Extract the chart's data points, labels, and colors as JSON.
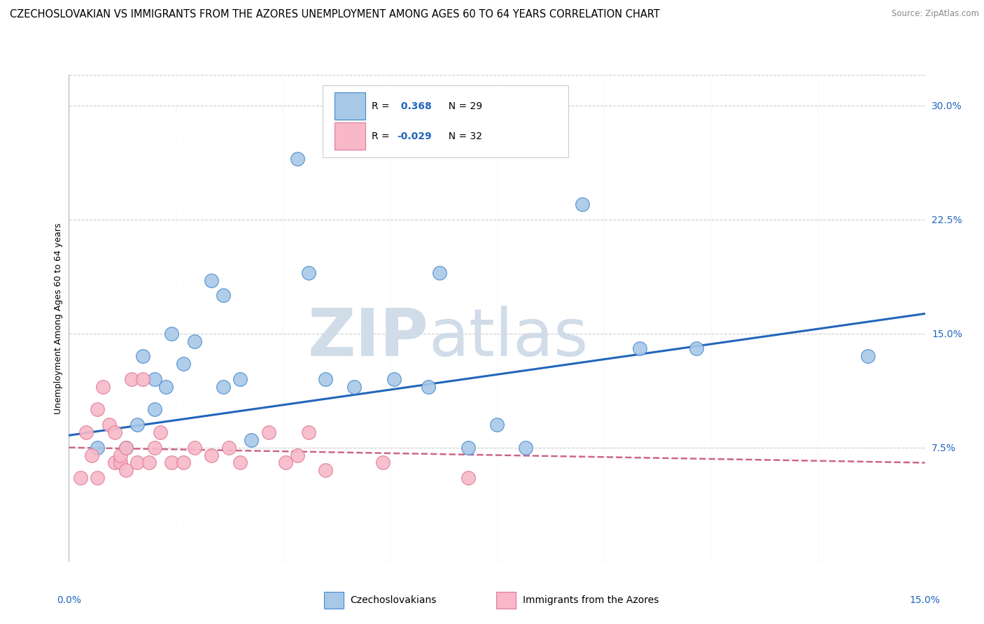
{
  "title": "CZECHOSLOVAKIAN VS IMMIGRANTS FROM THE AZORES UNEMPLOYMENT AMONG AGES 60 TO 64 YEARS CORRELATION CHART",
  "source": "Source: ZipAtlas.com",
  "ylabel": "Unemployment Among Ages 60 to 64 years",
  "ytick_labels": [
    "7.5%",
    "15.0%",
    "22.5%",
    "30.0%"
  ],
  "ytick_vals": [
    0.075,
    0.15,
    0.225,
    0.3
  ],
  "xlim": [
    0.0,
    0.15
  ],
  "ylim": [
    0.0,
    0.32
  ],
  "legend_R1": "R =  0.368",
  "legend_N1": "N = 29",
  "legend_R2": "R = -0.029",
  "legend_N2": "N = 32",
  "blue_fill": "#a8c8e8",
  "pink_fill": "#f8b8c8",
  "blue_edge": "#4488cc",
  "pink_edge": "#dd7799",
  "blue_line": "#2266bb",
  "pink_line": "#cc6688",
  "watermark_color": "#d0dce8",
  "grid_color": "#cccccc",
  "bg": "#ffffff",
  "blue_x": [
    0.005,
    0.01,
    0.012,
    0.013,
    0.015,
    0.015,
    0.017,
    0.018,
    0.02,
    0.022,
    0.025,
    0.027,
    0.027,
    0.03,
    0.032,
    0.04,
    0.042,
    0.045,
    0.05,
    0.057,
    0.063,
    0.065,
    0.07,
    0.075,
    0.08,
    0.09,
    0.1,
    0.11,
    0.14
  ],
  "blue_y": [
    0.075,
    0.075,
    0.09,
    0.135,
    0.1,
    0.12,
    0.115,
    0.15,
    0.13,
    0.145,
    0.185,
    0.175,
    0.115,
    0.12,
    0.08,
    0.265,
    0.19,
    0.12,
    0.115,
    0.12,
    0.115,
    0.19,
    0.075,
    0.09,
    0.075,
    0.235,
    0.14,
    0.14,
    0.135
  ],
  "pink_x": [
    0.002,
    0.003,
    0.004,
    0.005,
    0.005,
    0.006,
    0.007,
    0.008,
    0.008,
    0.009,
    0.009,
    0.01,
    0.01,
    0.011,
    0.012,
    0.013,
    0.014,
    0.015,
    0.016,
    0.018,
    0.02,
    0.022,
    0.025,
    0.028,
    0.03,
    0.035,
    0.038,
    0.04,
    0.042,
    0.045,
    0.055,
    0.07
  ],
  "pink_y": [
    0.055,
    0.085,
    0.07,
    0.055,
    0.1,
    0.115,
    0.09,
    0.065,
    0.085,
    0.065,
    0.07,
    0.06,
    0.075,
    0.12,
    0.065,
    0.12,
    0.065,
    0.075,
    0.085,
    0.065,
    0.065,
    0.075,
    0.07,
    0.075,
    0.065,
    0.085,
    0.065,
    0.07,
    0.085,
    0.06,
    0.065,
    0.055
  ],
  "blue_trend_x": [
    0.0,
    0.15
  ],
  "blue_trend_y": [
    0.083,
    0.163
  ],
  "pink_trend_x": [
    0.0,
    0.15
  ],
  "pink_trend_y": [
    0.075,
    0.065
  ],
  "bottom_legend_labels": [
    "Czechoslovakians",
    "Immigrants from the Azores"
  ]
}
